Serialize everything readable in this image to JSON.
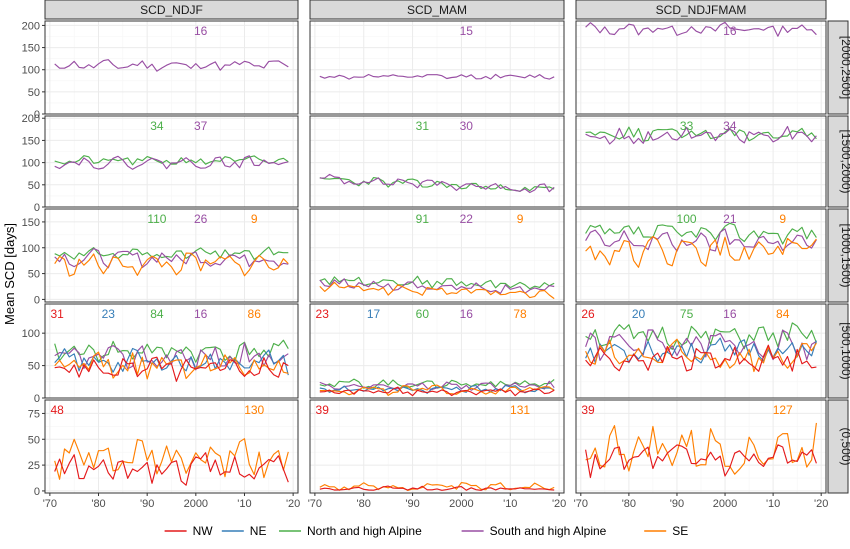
{
  "chart_data": {
    "type": "line",
    "ylabel": "Mean SCD [days]",
    "xlabel": "",
    "x_tick_labels": [
      "'70",
      "'80",
      "'90",
      "2000",
      "'10",
      "'20"
    ],
    "x_tick_values": [
      1970,
      1980,
      1990,
      2000,
      2010,
      2020
    ],
    "xlim": [
      1969,
      2021
    ],
    "columns": [
      "SCD_NDJF",
      "SCD_MAM",
      "SCD_NDJFMAM"
    ],
    "rows": [
      "[2000,2500]",
      "[1500,2000)",
      "[1000,1500)",
      "[500,1000)",
      "(0,500)"
    ],
    "row_ylims": [
      [
        0,
        210
      ],
      [
        0,
        205
      ],
      [
        -5,
        175
      ],
      [
        0,
        145
      ],
      [
        -2,
        88
      ]
    ],
    "row_yticks": [
      [
        0,
        50,
        100,
        150,
        200
      ],
      [
        0,
        50,
        100,
        150,
        200
      ],
      [
        0,
        50,
        100,
        150
      ],
      [
        0,
        50,
        100
      ],
      [
        0,
        25,
        50,
        75
      ]
    ],
    "series_colors": {
      "NW": "#e41a1c",
      "NE": "#377eb8",
      "North and high Alpine": "#4daf4a",
      "South and high Alpine": "#984ea3",
      "SE": "#ff7f00"
    },
    "legend": {
      "position": "bottom",
      "entries": [
        "NW",
        "NE",
        "North and high Alpine",
        "South and high Alpine",
        "SE"
      ]
    },
    "panels": [
      {
        "row": 0,
        "col": 0,
        "annotations": [
          {
            "text": "16",
            "series": "South and high Alpine"
          }
        ],
        "series": [
          {
            "name": "South and high Alpine",
            "mean": 110,
            "amp": 10,
            "seed": 11
          }
        ]
      },
      {
        "row": 0,
        "col": 1,
        "annotations": [
          {
            "text": "15",
            "series": "South and high Alpine"
          }
        ],
        "series": [
          {
            "name": "South and high Alpine",
            "mean": 84,
            "amp": 5,
            "seed": 12
          }
        ]
      },
      {
        "row": 0,
        "col": 2,
        "annotations": [
          {
            "text": "16",
            "series": "South and high Alpine"
          }
        ],
        "series": [
          {
            "name": "South and high Alpine",
            "mean": 192,
            "amp": 12,
            "seed": 13
          }
        ]
      },
      {
        "row": 1,
        "col": 0,
        "annotations": [
          {
            "text": "34",
            "series": "North and high Alpine"
          },
          {
            "text": "37",
            "series": "South and high Alpine"
          }
        ],
        "series": [
          {
            "name": "North and high Alpine",
            "mean": 104,
            "amp": 9,
            "seed": 21
          },
          {
            "name": "South and high Alpine",
            "mean": 100,
            "amp": 11,
            "seed": 22
          }
        ]
      },
      {
        "row": 1,
        "col": 1,
        "annotations": [
          {
            "text": "31",
            "series": "North and high Alpine"
          },
          {
            "text": "30",
            "series": "South and high Alpine"
          }
        ],
        "series": [
          {
            "name": "North and high Alpine",
            "mean": 62,
            "amp": 9,
            "seed": 23,
            "trend": -0.5
          },
          {
            "name": "South and high Alpine",
            "mean": 64,
            "amp": 10,
            "seed": 24,
            "trend": -0.5
          }
        ]
      },
      {
        "row": 1,
        "col": 2,
        "annotations": [
          {
            "text": "33",
            "series": "North and high Alpine"
          },
          {
            "text": "34",
            "series": "South and high Alpine"
          }
        ],
        "series": [
          {
            "name": "North and high Alpine",
            "mean": 166,
            "amp": 14,
            "seed": 25
          },
          {
            "name": "South and high Alpine",
            "mean": 160,
            "amp": 17,
            "seed": 26
          }
        ]
      },
      {
        "row": 2,
        "col": 0,
        "annotations": [
          {
            "text": "110",
            "series": "North and high Alpine"
          },
          {
            "text": "26",
            "series": "South and high Alpine"
          },
          {
            "text": "9",
            "series": "SE"
          }
        ],
        "series": [
          {
            "name": "North and high Alpine",
            "mean": 88,
            "amp": 11,
            "seed": 31
          },
          {
            "name": "South and high Alpine",
            "mean": 80,
            "amp": 14,
            "seed": 32
          },
          {
            "name": "SE",
            "mean": 68,
            "amp": 18,
            "seed": 33
          }
        ]
      },
      {
        "row": 2,
        "col": 1,
        "annotations": [
          {
            "text": "91",
            "series": "North and high Alpine"
          },
          {
            "text": "22",
            "series": "South and high Alpine"
          },
          {
            "text": "9",
            "series": "SE"
          }
        ],
        "series": [
          {
            "name": "North and high Alpine",
            "mean": 40,
            "amp": 8,
            "seed": 34,
            "trend": -0.3
          },
          {
            "name": "South and high Alpine",
            "mean": 32,
            "amp": 8,
            "seed": 35,
            "trend": -0.3
          },
          {
            "name": "SE",
            "mean": 24,
            "amp": 9,
            "seed": 36,
            "trend": -0.3
          }
        ]
      },
      {
        "row": 2,
        "col": 2,
        "annotations": [
          {
            "text": "100",
            "series": "North and high Alpine"
          },
          {
            "text": "21",
            "series": "South and high Alpine"
          },
          {
            "text": "9",
            "series": "SE"
          }
        ],
        "series": [
          {
            "name": "North and high Alpine",
            "mean": 128,
            "amp": 15,
            "seed": 37
          },
          {
            "name": "South and high Alpine",
            "mean": 112,
            "amp": 19,
            "seed": 38
          },
          {
            "name": "SE",
            "mean": 92,
            "amp": 22,
            "seed": 39
          }
        ]
      },
      {
        "row": 3,
        "col": 0,
        "annotations": [
          {
            "text": "31",
            "series": "NW"
          },
          {
            "text": "23",
            "series": "NE"
          },
          {
            "text": "84",
            "series": "North and high Alpine"
          },
          {
            "text": "16",
            "series": "South and high Alpine"
          },
          {
            "text": "86",
            "series": "SE"
          }
        ],
        "series": [
          {
            "name": "North and high Alpine",
            "mean": 72,
            "amp": 14,
            "seed": 41
          },
          {
            "name": "South and high Alpine",
            "mean": 62,
            "amp": 17,
            "seed": 42
          },
          {
            "name": "NE",
            "mean": 56,
            "amp": 16,
            "seed": 43
          },
          {
            "name": "SE",
            "mean": 50,
            "amp": 18,
            "seed": 44
          },
          {
            "name": "NW",
            "mean": 46,
            "amp": 15,
            "seed": 45
          }
        ]
      },
      {
        "row": 3,
        "col": 1,
        "annotations": [
          {
            "text": "23",
            "series": "NW"
          },
          {
            "text": "17",
            "series": "NE"
          },
          {
            "text": "60",
            "series": "North and high Alpine"
          },
          {
            "text": "16",
            "series": "South and high Alpine"
          },
          {
            "text": "78",
            "series": "SE"
          }
        ],
        "series": [
          {
            "name": "North and high Alpine",
            "mean": 22,
            "amp": 6,
            "seed": 46
          },
          {
            "name": "South and high Alpine",
            "mean": 18,
            "amp": 6,
            "seed": 47
          },
          {
            "name": "NE",
            "mean": 14,
            "amp": 5,
            "seed": 48
          },
          {
            "name": "SE",
            "mean": 12,
            "amp": 6,
            "seed": 49
          },
          {
            "name": "NW",
            "mean": 10,
            "amp": 5,
            "seed": 50
          }
        ]
      },
      {
        "row": 3,
        "col": 2,
        "annotations": [
          {
            "text": "26",
            "series": "NW"
          },
          {
            "text": "20",
            "series": "NE"
          },
          {
            "text": "75",
            "series": "North and high Alpine"
          },
          {
            "text": "16",
            "series": "South and high Alpine"
          },
          {
            "text": "84",
            "series": "SE"
          }
        ],
        "series": [
          {
            "name": "North and high Alpine",
            "mean": 95,
            "amp": 16,
            "seed": 51
          },
          {
            "name": "South and high Alpine",
            "mean": 82,
            "amp": 18,
            "seed": 52
          },
          {
            "name": "NE",
            "mean": 74,
            "amp": 17,
            "seed": 53
          },
          {
            "name": "SE",
            "mean": 64,
            "amp": 20,
            "seed": 54
          },
          {
            "name": "NW",
            "mean": 60,
            "amp": 16,
            "seed": 55
          }
        ]
      },
      {
        "row": 4,
        "col": 0,
        "annotations": [
          {
            "text": "48",
            "series": "NW"
          },
          {
            "text": "130",
            "series": "SE"
          }
        ],
        "series": [
          {
            "name": "SE",
            "mean": 30,
            "amp": 16,
            "seed": 61
          },
          {
            "name": "NW",
            "mean": 22,
            "amp": 12,
            "seed": 62
          }
        ]
      },
      {
        "row": 4,
        "col": 1,
        "annotations": [
          {
            "text": "39",
            "series": "NW"
          },
          {
            "text": "131",
            "series": "SE"
          }
        ],
        "series": [
          {
            "name": "SE",
            "mean": 4,
            "amp": 3,
            "seed": 63
          },
          {
            "name": "NW",
            "mean": 2,
            "amp": 2,
            "seed": 64
          }
        ]
      },
      {
        "row": 4,
        "col": 2,
        "annotations": [
          {
            "text": "39",
            "series": "NW"
          },
          {
            "text": "127",
            "series": "SE"
          }
        ],
        "series": [
          {
            "name": "SE",
            "mean": 40,
            "amp": 20,
            "seed": 65
          },
          {
            "name": "NW",
            "mean": 30,
            "amp": 14,
            "seed": 66
          }
        ]
      }
    ]
  }
}
